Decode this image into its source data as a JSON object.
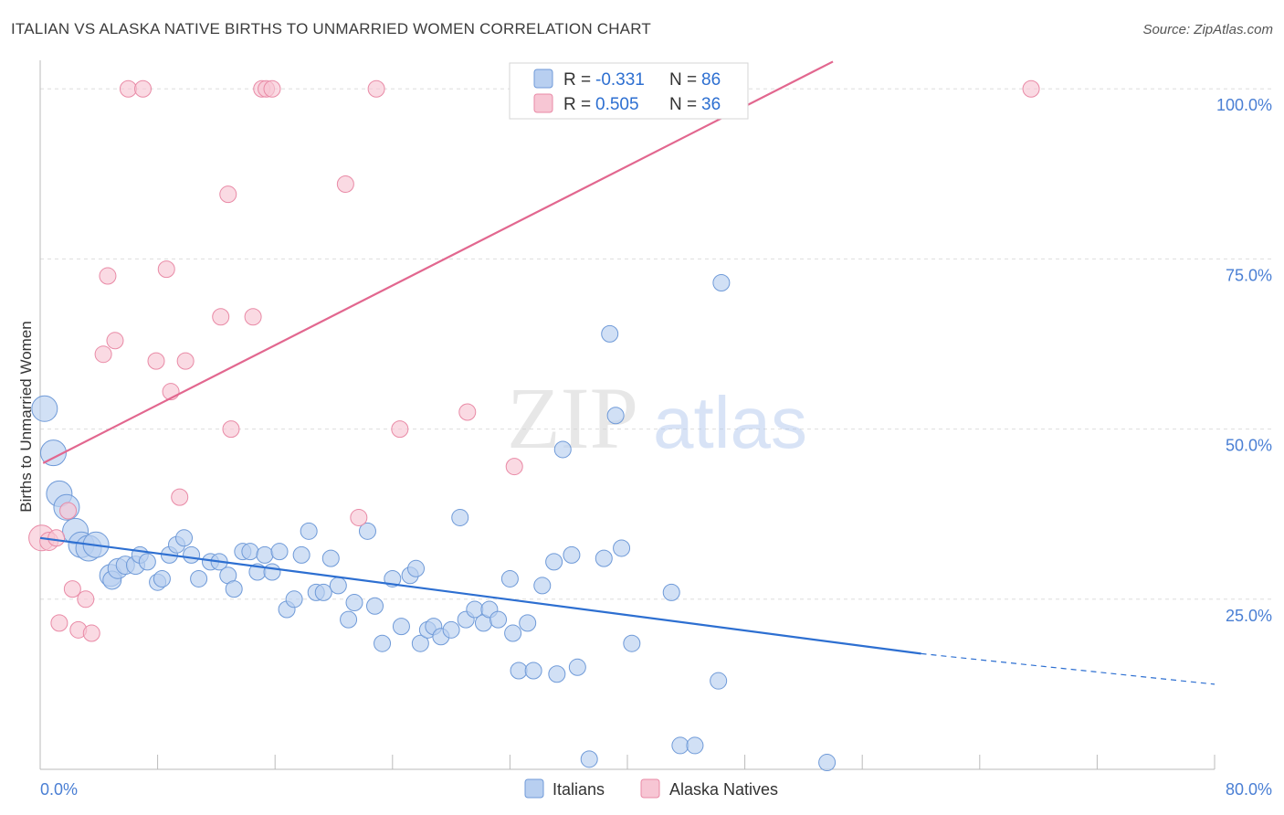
{
  "title": "ITALIAN VS ALASKA NATIVE BIRTHS TO UNMARRIED WOMEN CORRELATION CHART",
  "source": "Source: ZipAtlas.com",
  "watermark": {
    "zip": "ZIP",
    "atlas": "atlas"
  },
  "colors": {
    "blue_fill": "#b8cff0",
    "blue_stroke": "#6f9ad8",
    "blue_line": "#2d6fd1",
    "pink_fill": "#f7c6d4",
    "pink_stroke": "#e98aa6",
    "pink_line": "#e2678f",
    "tick_text": "#4a7fd4",
    "grid": "#dddddd"
  },
  "legend": {
    "row1": {
      "r_label": "R =",
      "r_value": "-0.331",
      "n_label": "N =",
      "n_value": "86"
    },
    "row2": {
      "r_label": "R =",
      "r_value": "0.505",
      "n_label": "N =",
      "n_value": "36"
    }
  },
  "chart_data": {
    "type": "scatter",
    "xlabel": "",
    "ylabel": "Births to Unmarried Women",
    "xlim": [
      0,
      80
    ],
    "ylim": [
      0,
      105
    ],
    "x_tick_labels": [
      {
        "value": 0,
        "label": "0.0%"
      },
      {
        "value": 80,
        "label": "80.0%"
      }
    ],
    "y_tick_labels": [
      {
        "value": 25,
        "label": "25.0%"
      },
      {
        "value": 50,
        "label": "50.0%"
      },
      {
        "value": 75,
        "label": "75.0%"
      },
      {
        "value": 100,
        "label": "100.0%"
      }
    ],
    "grid": true,
    "legend_position": "top-center",
    "series": [
      {
        "name": "Italians",
        "color": "#6f9ad8",
        "trend": {
          "x": [
            0,
            60
          ],
          "y": [
            34,
            17
          ],
          "dashed_to": [
            80,
            12.5
          ]
        },
        "points": [
          [
            0.3,
            53,
            14
          ],
          [
            0.9,
            46.5,
            14
          ],
          [
            1.3,
            40.5,
            14
          ],
          [
            1.8,
            38.5,
            14
          ],
          [
            2.4,
            35,
            14
          ],
          [
            2.8,
            33,
            14
          ],
          [
            3.3,
            32.5,
            14
          ],
          [
            3.8,
            33,
            14
          ],
          [
            4.8,
            28.5,
            12
          ],
          [
            4.9,
            27.8,
            10
          ],
          [
            5.3,
            29.5,
            11
          ],
          [
            5.8,
            30,
            10
          ],
          [
            6.5,
            30,
            10
          ],
          [
            6.8,
            31.5,
            9
          ],
          [
            7.3,
            30.5,
            9
          ],
          [
            8.0,
            27.5,
            9
          ],
          [
            8.3,
            28,
            9
          ],
          [
            8.8,
            31.5,
            9
          ],
          [
            9.3,
            33,
            9
          ],
          [
            9.8,
            34,
            9
          ],
          [
            10.3,
            31.5,
            9
          ],
          [
            10.8,
            28,
            9
          ],
          [
            11.6,
            30.5,
            9
          ],
          [
            12.2,
            30.5,
            9
          ],
          [
            12.8,
            28.5,
            9
          ],
          [
            13.2,
            26.5,
            9
          ],
          [
            13.8,
            32,
            9
          ],
          [
            14.3,
            32,
            9
          ],
          [
            14.8,
            29,
            9
          ],
          [
            15.3,
            31.5,
            9
          ],
          [
            15.8,
            29,
            9
          ],
          [
            16.3,
            32,
            9
          ],
          [
            16.8,
            23.5,
            9
          ],
          [
            17.3,
            25,
            9
          ],
          [
            17.8,
            31.5,
            9
          ],
          [
            18.3,
            35,
            9
          ],
          [
            18.8,
            26,
            9
          ],
          [
            19.3,
            26,
            9
          ],
          [
            19.8,
            31,
            9
          ],
          [
            20.3,
            27,
            9
          ],
          [
            21.0,
            22,
            9
          ],
          [
            21.4,
            24.5,
            9
          ],
          [
            22.3,
            35,
            9
          ],
          [
            22.8,
            24,
            9
          ],
          [
            23.3,
            18.5,
            9
          ],
          [
            24.0,
            28,
            9
          ],
          [
            24.6,
            21,
            9
          ],
          [
            25.2,
            28.5,
            9
          ],
          [
            25.6,
            29.5,
            9
          ],
          [
            25.9,
            18.5,
            9
          ],
          [
            26.4,
            20.5,
            9
          ],
          [
            26.8,
            21,
            9
          ],
          [
            27.3,
            19.5,
            9
          ],
          [
            28.0,
            20.5,
            9
          ],
          [
            29.0,
            22,
            9
          ],
          [
            29.6,
            23.5,
            9
          ],
          [
            28.6,
            37,
            9
          ],
          [
            30.2,
            21.5,
            9
          ],
          [
            30.6,
            23.5,
            9
          ],
          [
            31.2,
            22,
            9
          ],
          [
            32.0,
            28,
            9
          ],
          [
            32.2,
            20,
            9
          ],
          [
            32.6,
            14.5,
            9
          ],
          [
            33.2,
            21.5,
            9
          ],
          [
            33.6,
            14.5,
            9
          ],
          [
            34.2,
            27,
            9
          ],
          [
            35.0,
            30.5,
            9
          ],
          [
            35.2,
            14,
            9
          ],
          [
            35.6,
            47,
            9
          ],
          [
            36.2,
            31.5,
            9
          ],
          [
            36.6,
            15,
            9
          ],
          [
            37.4,
            1.5,
            9
          ],
          [
            38.4,
            31,
            9
          ],
          [
            38.8,
            64,
            9
          ],
          [
            39.2,
            52,
            9
          ],
          [
            39.6,
            32.5,
            9
          ],
          [
            40.3,
            18.5,
            9
          ],
          [
            43.0,
            26,
            9
          ],
          [
            43.6,
            3.5,
            9
          ],
          [
            44.6,
            3.5,
            9
          ],
          [
            46.2,
            13,
            9
          ],
          [
            46.4,
            71.5,
            9
          ],
          [
            53.6,
            1,
            9
          ]
        ]
      },
      {
        "name": "Alaska Natives",
        "color": "#e98aa6",
        "trend": {
          "x": [
            0.2,
            54
          ],
          "y": [
            45,
            104
          ]
        },
        "points": [
          [
            0.1,
            34,
            14
          ],
          [
            0.6,
            33.5,
            10
          ],
          [
            1.1,
            34,
            9
          ],
          [
            1.3,
            21.5,
            9
          ],
          [
            1.9,
            38,
            9
          ],
          [
            2.2,
            26.5,
            9
          ],
          [
            2.6,
            20.5,
            9
          ],
          [
            3.1,
            25,
            9
          ],
          [
            3.5,
            20,
            9
          ],
          [
            4.3,
            61,
            9
          ],
          [
            4.6,
            72.5,
            9
          ],
          [
            5.1,
            63,
            9
          ],
          [
            6.0,
            100,
            9
          ],
          [
            7.0,
            100,
            9
          ],
          [
            7.9,
            60,
            9
          ],
          [
            8.6,
            73.5,
            9
          ],
          [
            8.9,
            55.5,
            9
          ],
          [
            9.5,
            40,
            9
          ],
          [
            9.9,
            60,
            9
          ],
          [
            12.3,
            66.5,
            9
          ],
          [
            12.8,
            84.5,
            9
          ],
          [
            13.0,
            50,
            9
          ],
          [
            14.5,
            66.5,
            9
          ],
          [
            15.1,
            100,
            9
          ],
          [
            15.4,
            100,
            9
          ],
          [
            15.8,
            100,
            9
          ],
          [
            20.8,
            86,
            9
          ],
          [
            21.7,
            37,
            9
          ],
          [
            22.9,
            100,
            9
          ],
          [
            24.5,
            50,
            9
          ],
          [
            29.1,
            52.5,
            9
          ],
          [
            32.3,
            44.5,
            9
          ],
          [
            67.5,
            100,
            9
          ]
        ]
      }
    ]
  },
  "bottom_legend": {
    "italians": "Italians",
    "alaska_natives": "Alaska Natives"
  }
}
